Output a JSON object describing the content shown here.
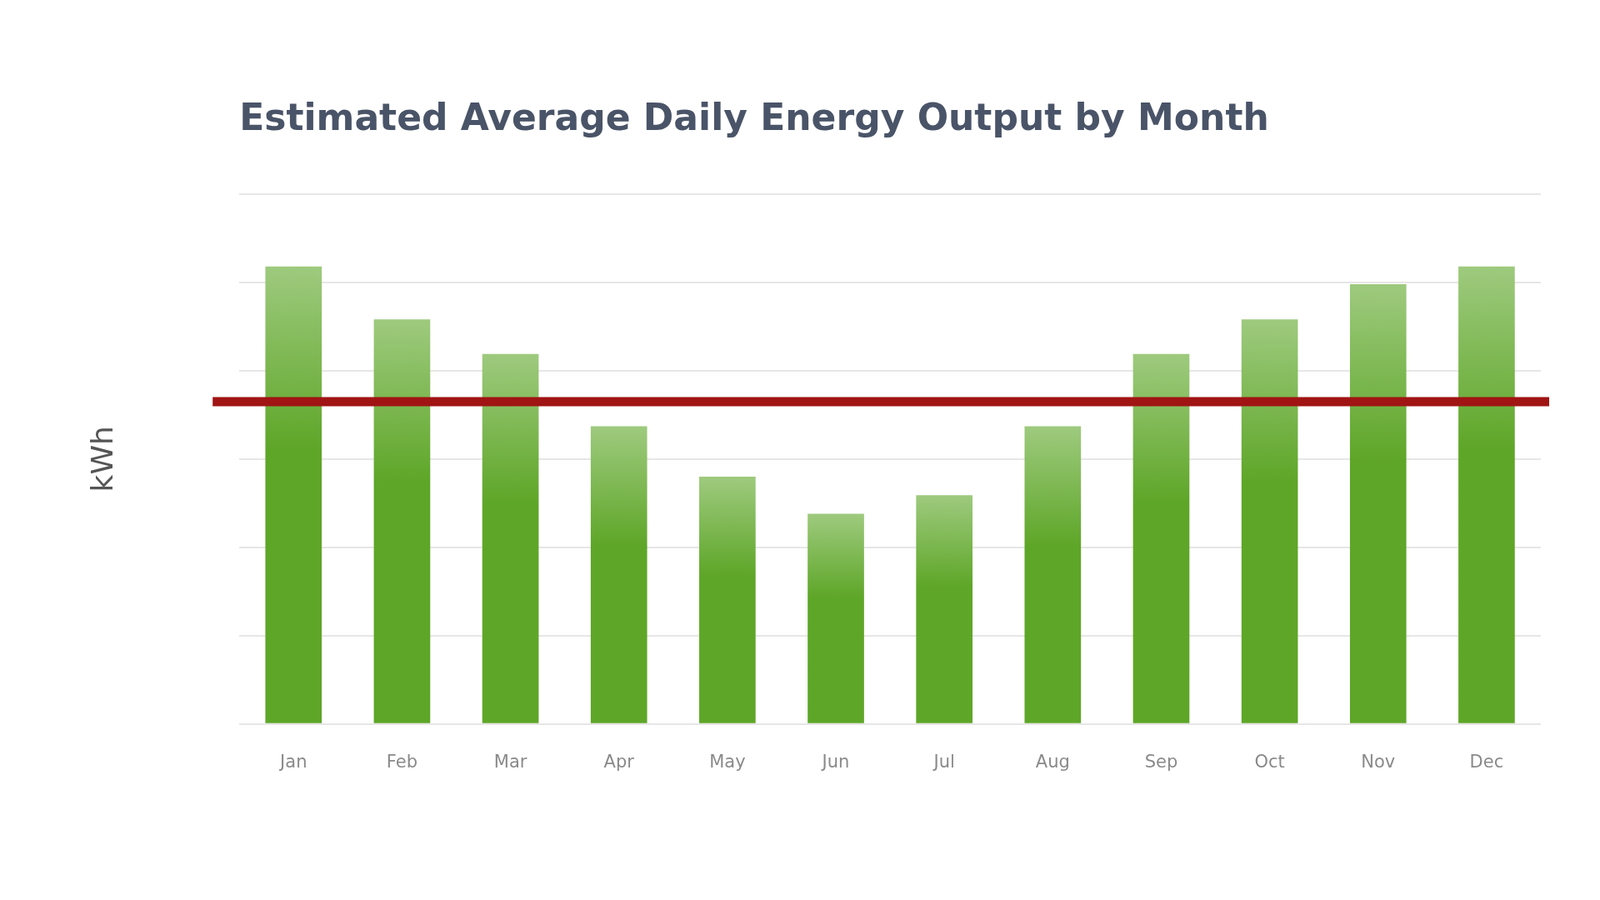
{
  "chart_data": {
    "type": "bar",
    "title": "Estimated Average Daily Energy Output by Month",
    "y_label": "kWh",
    "categories": [
      "Jan",
      "Feb",
      "Mar",
      "Apr",
      "May",
      "Jun",
      "Jul",
      "Aug",
      "Sep",
      "Oct",
      "Nov",
      "Dec"
    ],
    "values": [
      5.18,
      4.58,
      4.19,
      3.37,
      2.8,
      2.38,
      2.59,
      3.37,
      4.19,
      4.58,
      4.98,
      5.18
    ],
    "color": "#5ea628",
    "ylim": [
      0,
      6
    ],
    "yticks": [
      0,
      1,
      2,
      3,
      4,
      5,
      6
    ],
    "grid": true,
    "tick_labels": "x",
    "reference_line": {
      "value": 3.65,
      "color": "#a01414"
    }
  }
}
